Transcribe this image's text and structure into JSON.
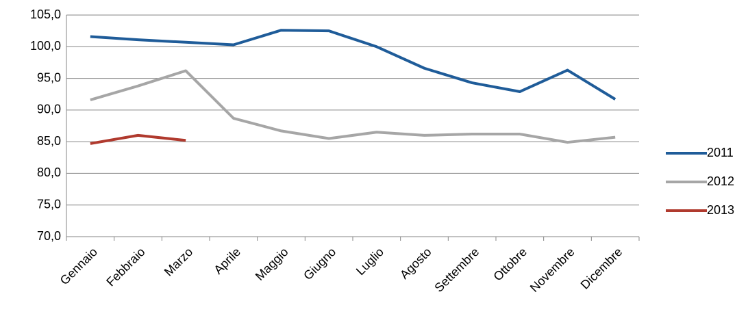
{
  "chart_data": {
    "type": "line",
    "categories": [
      "Gennaio",
      "Febbraio",
      "Marzo",
      "Aprile",
      "Maggio",
      "Giugno",
      "Luglio",
      "Agosto",
      "Settembre",
      "Ottobre",
      "Novembre",
      "Dicembre"
    ],
    "series": [
      {
        "name": "2011",
        "color": "#1f5c99",
        "values": [
          101.6,
          101.1,
          100.7,
          100.3,
          102.6,
          102.5,
          100.0,
          96.6,
          94.3,
          92.9,
          96.3,
          91.7
        ]
      },
      {
        "name": "2012",
        "color": "#a6a6a6",
        "values": [
          91.6,
          93.8,
          96.2,
          88.7,
          86.7,
          85.5,
          86.5,
          86.0,
          86.2,
          86.2,
          84.9,
          85.7
        ]
      },
      {
        "name": "2013",
        "color": "#b03a2e",
        "values": [
          84.7,
          86.0,
          85.2,
          null,
          null,
          null,
          null,
          null,
          null,
          null,
          null,
          null
        ]
      }
    ],
    "ylim": [
      70,
      105
    ],
    "yticks": [
      {
        "value": 70,
        "label": "70,0"
      },
      {
        "value": 75,
        "label": "75,0"
      },
      {
        "value": 80,
        "label": "80,0"
      },
      {
        "value": 85,
        "label": "85,0"
      },
      {
        "value": 90,
        "label": "90,0"
      },
      {
        "value": 95,
        "label": "95,0"
      },
      {
        "value": 100,
        "label": "100,0"
      },
      {
        "value": 105,
        "label": "105,0"
      }
    ],
    "grid": true,
    "legend": "right"
  }
}
